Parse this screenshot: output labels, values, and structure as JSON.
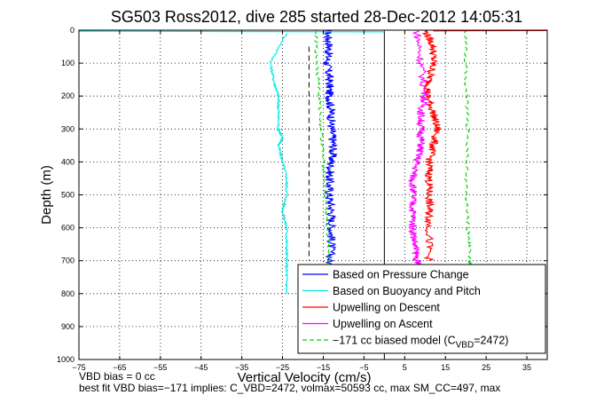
{
  "chart_data": {
    "type": "line",
    "title": "SG503 Ross2012, dive 285 started 28-Dec-2012 14:05:31",
    "xlabel": "Vertical Velocity (cm/s)",
    "ylabel": "Depth (m)",
    "xlim": [
      -75,
      40
    ],
    "ylim": [
      0,
      1000
    ],
    "y_reversed": true,
    "grid": true,
    "legend_position": "lower-right",
    "x_ticks": [
      "-75",
      "-65",
      "-55",
      "-45",
      "-35",
      "-25",
      "-15",
      "-5",
      "5",
      "15",
      "25",
      "35"
    ],
    "y_ticks": [
      "0",
      "100",
      "200",
      "300",
      "400",
      "500",
      "600",
      "700",
      "800",
      "900",
      "1000"
    ],
    "series": [
      {
        "name": "Based on Pressure Change",
        "color": "#0000ff",
        "style": "solid",
        "x": [
          -14,
          -13.5,
          -14,
          -13.5,
          -13.5,
          -13,
          -13,
          -12.5,
          -13,
          -13.5,
          -13.5,
          -13,
          -13,
          -13,
          -13.5
        ],
        "y": [
          0,
          50,
          100,
          150,
          200,
          250,
          300,
          350,
          400,
          450,
          500,
          550,
          600,
          650,
          720
        ]
      },
      {
        "name": "Based on Buoyancy and Pitch",
        "color": "#00e5e5",
        "style": "solid",
        "x": [
          -24,
          -28,
          -27,
          -26,
          -26,
          -26,
          -25,
          -26,
          -25,
          -24,
          -24,
          -25,
          -24,
          -24,
          -24,
          -24,
          -24
        ],
        "y": [
          10,
          100,
          160,
          200,
          250,
          300,
          330,
          350,
          400,
          450,
          500,
          550,
          600,
          650,
          700,
          750,
          800
        ]
      },
      {
        "name": "Upwelling on Descent",
        "color": "#ff0000",
        "style": "solid",
        "x": [
          10,
          12,
          12,
          11,
          10.5,
          12,
          13,
          12,
          11,
          11,
          11,
          11,
          11,
          11
        ],
        "y": [
          0,
          50,
          100,
          150,
          200,
          250,
          300,
          350,
          400,
          450,
          500,
          550,
          600,
          700
        ]
      },
      {
        "name": "Upwelling on Ascent",
        "color": "#ff00ff",
        "style": "solid",
        "x": [
          8,
          9,
          10,
          9,
          9,
          9,
          8,
          7,
          7,
          7,
          7,
          7.5,
          8,
          8.5
        ],
        "y": [
          0,
          100,
          200,
          250,
          300,
          350,
          400,
          450,
          500,
          550,
          600,
          650,
          700,
          720
        ]
      },
      {
        "name": "-171 cc biased model (C_VBD=2472)",
        "legend_label": "−171 cc biased model (C",
        "legend_sub": "VBD",
        "legend_tail": "=2472)",
        "color": "#00cc00",
        "style": "dashed",
        "x": [
          -17,
          -16.5,
          -16,
          -15.5,
          -15,
          -14.5,
          -14,
          -13.5,
          -13,
          -12.5
        ],
        "y": [
          0,
          100,
          200,
          300,
          400,
          500,
          600,
          700,
          800,
          820
        ],
        "x2": [
          20,
          20,
          20.5,
          20,
          20.5,
          21,
          21
        ],
        "y2": [
          0,
          150,
          300,
          450,
          600,
          700,
          720
        ]
      }
    ],
    "reference_lines": [
      {
        "x": 0,
        "color": "#000000",
        "style": "solid"
      },
      {
        "x": -18.5,
        "color": "#000000",
        "style": "dashed",
        "y_from": 50,
        "y_to": 700
      }
    ]
  },
  "footer": {
    "line1": "VBD bias = 0 cc",
    "line2": "best fit VBD bias=−171 implies: C_VBD=2472, volmax=50593 cc, max SM_CC=497, max"
  }
}
